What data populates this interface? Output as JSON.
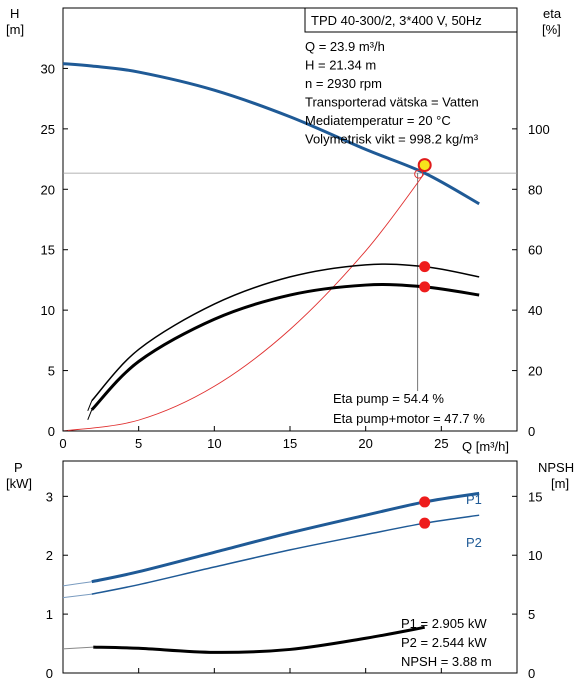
{
  "chart_data": [
    {
      "type": "line",
      "title": "TPD 40-300/2, 3*400 V, 50Hz",
      "ylabel_left": [
        "H",
        "[m]"
      ],
      "ylabel_right": [
        "eta",
        "[%]"
      ],
      "xlabel": "Q [m³/h]",
      "xlim": [
        0,
        30
      ],
      "ylim_left": [
        0,
        35
      ],
      "ylim_right": [
        0,
        140
      ],
      "x_ticks": [
        0,
        5,
        10,
        15,
        20,
        25
      ],
      "y_ticks_left": [
        0,
        5,
        10,
        15,
        20,
        25,
        30
      ],
      "y_ticks_right": [
        0,
        20,
        40,
        60,
        80,
        100
      ],
      "info_lines": [
        "Q = 23.9 m³/h",
        "H = 21.34 m",
        "n = 2930 rpm",
        "Transporterad vätska = Vatten",
        "Mediatemperatur = 20 °C",
        "Volymetrisk vikt = 998.2 kg/m³"
      ],
      "annotations": [
        "Eta pump = 54.4 %",
        "Eta pump+motor = 47.7 %"
      ],
      "duty_point": {
        "q": 23.9,
        "h": 21.34,
        "eta_pump": 54.4,
        "eta_total": 47.7
      },
      "series": [
        {
          "role": "head",
          "axis": "left",
          "color": "#1f5a96",
          "x": [
            0,
            1.9,
            5,
            10,
            15,
            20,
            23.9,
            27.5
          ],
          "y": [
            30.4,
            30.2,
            29.7,
            28.2,
            26.0,
            23.3,
            21.34,
            18.8
          ]
        },
        {
          "role": "head-ext",
          "axis": "left",
          "color": "#1f5a96",
          "x": [
            0,
            1.9
          ],
          "y": [
            30.4,
            30.2
          ]
        },
        {
          "role": "eta-pump",
          "axis": "right",
          "color": "#000000",
          "x": [
            1.9,
            5,
            10,
            15,
            20,
            23.9,
            27.5
          ],
          "y": [
            10,
            27,
            42,
            51,
            55,
            54.4,
            51
          ]
        },
        {
          "role": "eta-total",
          "axis": "right",
          "color": "#000000",
          "x": [
            1.9,
            5,
            10,
            15,
            20,
            23.9,
            27.5
          ],
          "y": [
            7,
            23,
            37,
            45,
            48.3,
            47.7,
            45
          ]
        },
        {
          "role": "system",
          "axis": "left",
          "color": "#e03030",
          "x": [
            0,
            5,
            10,
            15,
            20,
            23.9
          ],
          "y": [
            0,
            0.9,
            3.7,
            8.4,
            14.9,
            21.34
          ]
        }
      ]
    },
    {
      "type": "line",
      "ylabel_left": [
        "P",
        "[kW]"
      ],
      "ylabel_right": [
        "NPSH",
        "[m]"
      ],
      "xlim": [
        0,
        30
      ],
      "ylim_left": [
        0,
        3.6
      ],
      "ylim_right": [
        0,
        18
      ],
      "y_ticks_left": [
        0,
        1,
        2,
        3
      ],
      "y_ticks_right": [
        0,
        5,
        10,
        15
      ],
      "annotations": [
        "P1 = 2.905 kW",
        "P2 = 2.544 kW",
        "NPSH = 3.88 m"
      ],
      "series": [
        {
          "name": "P1",
          "axis": "left",
          "color": "#1f5a96",
          "x": [
            0,
            1.9,
            5,
            10,
            15,
            20,
            23.9,
            27.5
          ],
          "y": [
            1.48,
            1.55,
            1.72,
            2.05,
            2.38,
            2.68,
            2.905,
            3.05
          ]
        },
        {
          "name": "P2",
          "axis": "left",
          "color": "#1f5a96",
          "x": [
            0,
            1.9,
            5,
            10,
            15,
            20,
            23.9,
            27.5
          ],
          "y": [
            1.28,
            1.34,
            1.5,
            1.8,
            2.09,
            2.35,
            2.544,
            2.68
          ]
        },
        {
          "role": "npsh",
          "axis": "right",
          "color": "#000000",
          "x": [
            0,
            2,
            5,
            10,
            15,
            20,
            23.9
          ],
          "y": [
            2.05,
            2.2,
            2.1,
            1.75,
            2.0,
            2.95,
            3.88
          ]
        }
      ]
    }
  ]
}
